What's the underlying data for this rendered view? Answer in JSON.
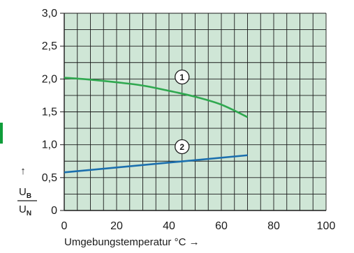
{
  "chart_data": {
    "type": "line",
    "xlabel": "Umgebungstemperatur °C →",
    "ylabel": {
      "arrow": "↑",
      "numerator": "U",
      "numerator_sub": "B",
      "denominator": "U",
      "denominator_sub": "N"
    },
    "xlim": [
      0,
      100
    ],
    "ylim": [
      0,
      3.0
    ],
    "x_ticks": [
      "0",
      "20",
      "40",
      "60",
      "80",
      "100"
    ],
    "y_ticks": [
      "0",
      "0,5",
      "1,0",
      "1,5",
      "2,0",
      "2,5",
      "3,0"
    ],
    "grid": true,
    "background_color": "#cfe6d6",
    "grid_color": "#1a1a1a",
    "side_marker_color": "#0f9d3a",
    "series": [
      {
        "name": "1",
        "color": "#2fa84f",
        "x": [
          0,
          10,
          20,
          30,
          40,
          50,
          60,
          70
        ],
        "y": [
          2.02,
          1.99,
          1.95,
          1.9,
          1.82,
          1.73,
          1.61,
          1.42
        ],
        "label_at": [
          45,
          2.03
        ]
      },
      {
        "name": "2",
        "color": "#1b6fae",
        "x": [
          0,
          70
        ],
        "y": [
          0.58,
          0.84
        ],
        "label_at": [
          45,
          0.97
        ]
      }
    ]
  }
}
